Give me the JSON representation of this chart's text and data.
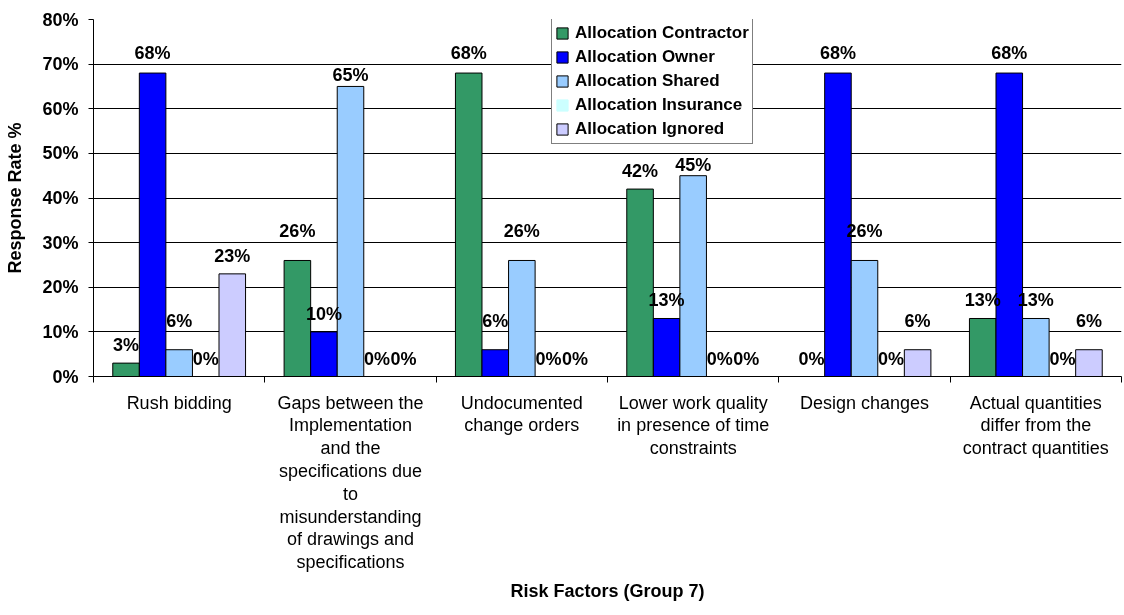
{
  "chart_data": {
    "type": "bar",
    "xlabel": "Risk Factors (Group 7)",
    "ylabel": "Response Rate %",
    "categories": [
      "Rush bidding",
      "Gaps between the Implementation and the specifications due to misunderstanding of drawings and specifications",
      "Undocumented change orders",
      "Lower work quality in presence of time constraints",
      "Design changes",
      "Actual quantities differ from the contract quantities"
    ],
    "series": [
      {
        "name": "Allocation Contractor",
        "color": "#339966",
        "values": [
          3,
          26,
          68,
          42,
          0,
          13
        ],
        "value_labels": [
          "3%",
          "26%",
          "68%",
          "42%",
          "0%",
          "13%"
        ]
      },
      {
        "name": "Allocation Owner",
        "color": "#0000ff",
        "values": [
          68,
          10,
          6,
          13,
          68,
          68
        ],
        "value_labels": [
          "68%",
          "10%",
          "6%",
          "13%",
          "68%",
          "68%"
        ]
      },
      {
        "name": "Allocation Shared",
        "color": "#99ccff",
        "values": [
          6,
          65,
          26,
          45,
          26,
          13
        ],
        "value_labels": [
          "6%",
          "65%",
          "26%",
          "45%",
          "26%",
          "13%"
        ]
      },
      {
        "name": "Allocation Insurance",
        "color": "#ccffff",
        "values": [
          0,
          0,
          0,
          0,
          0,
          0
        ],
        "value_labels": [
          "0%",
          "0%",
          "0%",
          "0%",
          "0%",
          "0%"
        ]
      },
      {
        "name": "Allocation Ignored",
        "color": "#ccccff",
        "values": [
          23,
          0,
          0,
          0,
          6,
          6
        ],
        "value_labels": [
          "23%",
          "0%",
          "0%",
          "0%",
          "6%",
          "6%"
        ]
      }
    ],
    "ylim": [
      0,
      80
    ],
    "yticks": [
      {
        "value": 0,
        "label": "0%"
      },
      {
        "value": 10,
        "label": "10%"
      },
      {
        "value": 20,
        "label": "20%"
      },
      {
        "value": 30,
        "label": "30%"
      },
      {
        "value": 40,
        "label": "40%"
      },
      {
        "value": 50,
        "label": "50%"
      },
      {
        "value": 60,
        "label": "60%"
      },
      {
        "value": 70,
        "label": "70%"
      },
      {
        "value": 80,
        "label": "80%"
      }
    ],
    "grid": "y",
    "legend": "top"
  }
}
